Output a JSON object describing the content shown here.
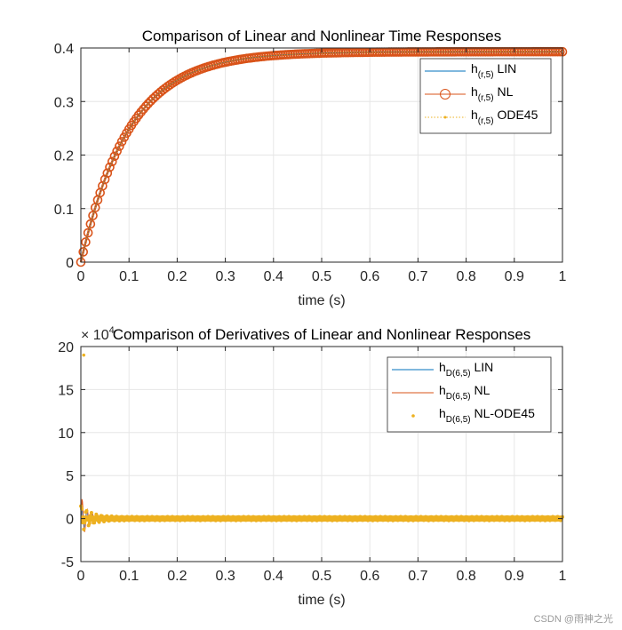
{
  "watermark": "CSDN @雨神之光",
  "colors": {
    "lin": "#0072BD",
    "nl": "#D95319",
    "ode": "#EDB120",
    "grid": "#e6e6e6",
    "axis": "#262626"
  },
  "chart_data": [
    {
      "type": "line",
      "title": "Comparison of Linear and Nonlinear Time Responses",
      "xlabel": "time (s)",
      "ylabel": "",
      "xlim": [
        0,
        1
      ],
      "ylim": [
        0,
        0.4
      ],
      "xticks": [
        0,
        0.1,
        0.2,
        0.3,
        0.4,
        0.5,
        0.6,
        0.7,
        0.8,
        0.9,
        1
      ],
      "xtick_labels": [
        "0",
        "0.1",
        "0.2",
        "0.3",
        "0.4",
        "0.5",
        "0.6",
        "0.7",
        "0.8",
        "0.9",
        "1"
      ],
      "yticks": [
        0,
        0.1,
        0.2,
        0.3,
        0.4
      ],
      "ytick_labels": [
        "0",
        "0.1",
        "0.2",
        "0.3",
        "0.4"
      ],
      "grid": true,
      "legend_position": "top-right",
      "model": {
        "final_value": 0.393,
        "time_constant": 0.1
      },
      "series": [
        {
          "name": "LIN",
          "legend_main": "h",
          "legend_sub": "(r,5)",
          "legend_suffix": " LIN",
          "style": "line"
        },
        {
          "name": "NL",
          "legend_main": "h",
          "legend_sub": "(r,5)",
          "legend_suffix": " NL",
          "style": "circle-markers"
        },
        {
          "name": "ODE45",
          "legend_main": "h",
          "legend_sub": "(r,5)",
          "legend_suffix": " ODE45",
          "style": "dotted-points"
        }
      ]
    },
    {
      "type": "line",
      "title": "Comparison of Derivatives of Linear and Nonlinear Responses",
      "xlabel": "time (s)",
      "ylabel": "",
      "exponent_label": "× 10",
      "exponent_power": "4",
      "xlim": [
        0,
        1
      ],
      "ylim": [
        -5,
        20
      ],
      "xticks": [
        0,
        0.1,
        0.2,
        0.3,
        0.4,
        0.5,
        0.6,
        0.7,
        0.8,
        0.9,
        1
      ],
      "xtick_labels": [
        "0",
        "0.1",
        "0.2",
        "0.3",
        "0.4",
        "0.5",
        "0.6",
        "0.7",
        "0.8",
        "0.9",
        "1"
      ],
      "yticks": [
        -5,
        0,
        5,
        10,
        15,
        20
      ],
      "ytick_labels": [
        "-5",
        "0",
        "5",
        "10",
        "15",
        "20"
      ],
      "grid": true,
      "legend_position": "top-right",
      "outlier_point": {
        "x": 0.006,
        "y": 19
      },
      "series": [
        {
          "name": "LIN",
          "legend_main": "h",
          "legend_sub": "D(6,5)",
          "legend_suffix": " LIN",
          "style": "line"
        },
        {
          "name": "NL",
          "legend_main": "h",
          "legend_sub": "D(6,5)",
          "legend_suffix": " NL",
          "style": "line"
        },
        {
          "name": "NL-ODE45",
          "legend_main": "h",
          "legend_sub": "D(6,5)",
          "legend_suffix": " NL-ODE45",
          "style": "points"
        }
      ]
    }
  ]
}
